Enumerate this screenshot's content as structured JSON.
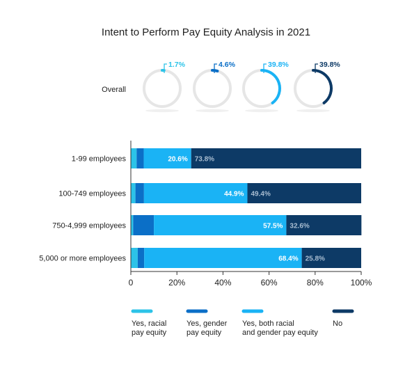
{
  "chart_data": {
    "type": "bar",
    "title": "Intent to Perform Pay Equity Analysis in 2021",
    "overall": {
      "label": "Overall",
      "values": [
        1.7,
        4.6,
        39.8,
        39.8
      ],
      "value_labels": [
        "1.7%",
        "4.6%",
        "39.8%",
        "39.8%"
      ]
    },
    "categories": [
      "1-99 employees",
      "100-749 employees",
      "750-4,999 employees",
      "5,000 or more employees"
    ],
    "series": [
      {
        "name": "Yes, racial pay equity",
        "legend_lines": [
          "Yes, racial",
          "pay equity"
        ],
        "values": [
          2.5,
          2.0,
          1.0,
          3.0
        ]
      },
      {
        "name": "Yes, gender pay equity",
        "legend_lines": [
          "Yes, gender",
          "pay equity"
        ],
        "values": [
          3.1,
          3.7,
          9.0,
          2.8
        ]
      },
      {
        "name": "Yes, both racial and gender pay equity",
        "legend_lines": [
          "Yes, both racial",
          "and gender pay equity"
        ],
        "values": [
          20.6,
          44.9,
          57.5,
          68.4
        ],
        "data_labels": [
          "20.6%",
          "44.9%",
          "57.5%",
          "68.4%"
        ]
      },
      {
        "name": "No",
        "legend_lines": [
          "No"
        ],
        "values": [
          73.8,
          49.4,
          32.6,
          25.8
        ],
        "data_labels": [
          "73.8%",
          "49.4%",
          "32.6%",
          "25.8%"
        ]
      }
    ],
    "x_ticks": [
      "0",
      "20%",
      "40%",
      "60%",
      "80%",
      "100%"
    ],
    "xlim": [
      0,
      100
    ],
    "legend_position": "bottom",
    "colors": {
      "racial": "#2cc3e8",
      "gender": "#0b6fc7",
      "both": "#1ab3f5",
      "no": "#0d3a66",
      "track": "#e6e6e6",
      "label_light": "#ffffff",
      "label_no": "#a9bdd1"
    }
  }
}
